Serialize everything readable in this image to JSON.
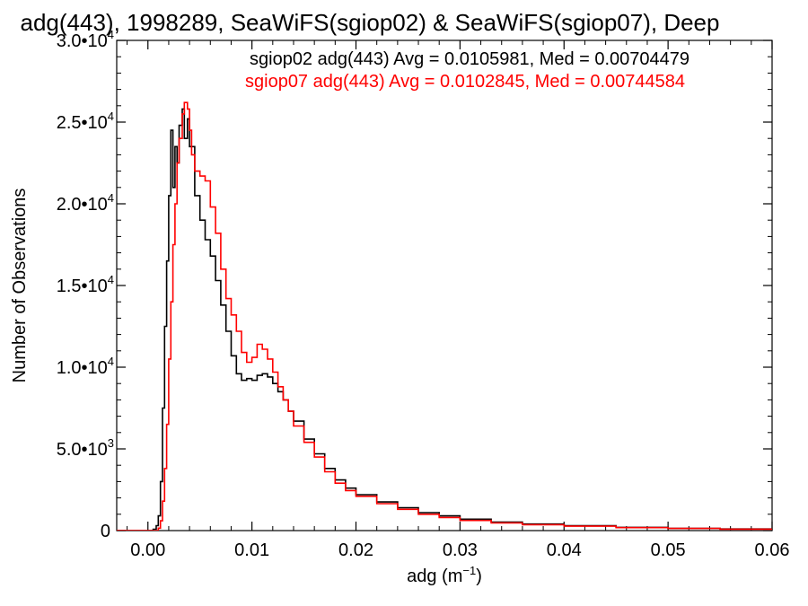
{
  "chart_data": {
    "type": "line",
    "title": "adg(443), 1998289, SeaWiFS(sgiop02) & SeaWiFS(sgiop07), Deep",
    "xlabel": "adg (m",
    "xlabel_sup": "−1",
    "xlabel_close": ")",
    "ylabel": "Number of Observations",
    "xlim": [
      -0.003,
      0.06
    ],
    "ylim": [
      0,
      30000
    ],
    "x_ticks": [
      {
        "value": 0.0,
        "label": "0.00"
      },
      {
        "value": 0.01,
        "label": "0.01"
      },
      {
        "value": 0.02,
        "label": "0.02"
      },
      {
        "value": 0.03,
        "label": "0.03"
      },
      {
        "value": 0.04,
        "label": "0.04"
      },
      {
        "value": 0.05,
        "label": "0.05"
      },
      {
        "value": 0.06,
        "label": "0.06"
      }
    ],
    "y_ticks": [
      {
        "value": 0,
        "mant": "0",
        "exp": ""
      },
      {
        "value": 5000,
        "mant": "5.0•10",
        "exp": "3"
      },
      {
        "value": 10000,
        "mant": "1.0•10",
        "exp": "4"
      },
      {
        "value": 15000,
        "mant": "1.5•10",
        "exp": "4"
      },
      {
        "value": 20000,
        "mant": "2.0•10",
        "exp": "4"
      },
      {
        "value": 25000,
        "mant": "2.5•10",
        "exp": "4"
      },
      {
        "value": 30000,
        "mant": "3.0•10",
        "exp": "4"
      }
    ],
    "grid": false,
    "legend_position": "top-right",
    "series": [
      {
        "name": "sgiop02 adg(443) Avg = 0.0105981, Med = 0.00704479",
        "color": "#000000",
        "points": [
          [
            -0.003,
            0
          ],
          [
            0.0,
            0
          ],
          [
            0.0005,
            80
          ],
          [
            0.0008,
            300
          ],
          [
            0.001,
            900
          ],
          [
            0.0012,
            3000
          ],
          [
            0.0014,
            7500
          ],
          [
            0.0016,
            12500
          ],
          [
            0.0018,
            16500
          ],
          [
            0.002,
            20500
          ],
          [
            0.0022,
            24500
          ],
          [
            0.0024,
            21000
          ],
          [
            0.0026,
            23500
          ],
          [
            0.0028,
            22500
          ],
          [
            0.003,
            24800
          ],
          [
            0.0033,
            25800
          ],
          [
            0.0035,
            24000
          ],
          [
            0.0038,
            25200
          ],
          [
            0.004,
            23500
          ],
          [
            0.0045,
            20500
          ],
          [
            0.005,
            19000
          ],
          [
            0.0055,
            17800
          ],
          [
            0.006,
            16800
          ],
          [
            0.0065,
            15300
          ],
          [
            0.007,
            13800
          ],
          [
            0.0075,
            12200
          ],
          [
            0.008,
            10700
          ],
          [
            0.0085,
            9600
          ],
          [
            0.009,
            9200
          ],
          [
            0.0095,
            9300
          ],
          [
            0.01,
            9200
          ],
          [
            0.0105,
            9500
          ],
          [
            0.011,
            9600
          ],
          [
            0.0115,
            9400
          ],
          [
            0.012,
            9000
          ],
          [
            0.0125,
            8500
          ],
          [
            0.013,
            8000
          ],
          [
            0.0135,
            7300
          ],
          [
            0.014,
            6700
          ],
          [
            0.015,
            5600
          ],
          [
            0.016,
            4700
          ],
          [
            0.017,
            3800
          ],
          [
            0.018,
            3100
          ],
          [
            0.019,
            2600
          ],
          [
            0.02,
            2200
          ],
          [
            0.022,
            1750
          ],
          [
            0.024,
            1400
          ],
          [
            0.026,
            1100
          ],
          [
            0.028,
            900
          ],
          [
            0.03,
            700
          ],
          [
            0.033,
            520
          ],
          [
            0.036,
            400
          ],
          [
            0.04,
            300
          ],
          [
            0.045,
            200
          ],
          [
            0.05,
            140
          ],
          [
            0.055,
            100
          ],
          [
            0.06,
            60
          ]
        ]
      },
      {
        "name": "sgiop07 adg(443) Avg = 0.0102845, Med = 0.00744584",
        "color": "#ff0000",
        "points": [
          [
            -0.003,
            0
          ],
          [
            0.0008,
            0
          ],
          [
            0.001,
            150
          ],
          [
            0.0012,
            600
          ],
          [
            0.0014,
            1800
          ],
          [
            0.0016,
            3800
          ],
          [
            0.0018,
            6500
          ],
          [
            0.002,
            10500
          ],
          [
            0.0022,
            14000
          ],
          [
            0.0024,
            17500
          ],
          [
            0.0026,
            20000
          ],
          [
            0.0028,
            22500
          ],
          [
            0.003,
            24000
          ],
          [
            0.0033,
            25500
          ],
          [
            0.0035,
            26200
          ],
          [
            0.0038,
            25800
          ],
          [
            0.004,
            24500
          ],
          [
            0.0042,
            23000
          ],
          [
            0.0045,
            22000
          ],
          [
            0.005,
            21700
          ],
          [
            0.0055,
            21400
          ],
          [
            0.006,
            19800
          ],
          [
            0.0065,
            18200
          ],
          [
            0.007,
            16000
          ],
          [
            0.0075,
            14200
          ],
          [
            0.008,
            13200
          ],
          [
            0.0085,
            12200
          ],
          [
            0.009,
            10900
          ],
          [
            0.0095,
            10300
          ],
          [
            0.01,
            10600
          ],
          [
            0.0105,
            11400
          ],
          [
            0.011,
            11100
          ],
          [
            0.0115,
            10500
          ],
          [
            0.012,
            9700
          ],
          [
            0.0125,
            8800
          ],
          [
            0.013,
            8000
          ],
          [
            0.0135,
            7300
          ],
          [
            0.014,
            6400
          ],
          [
            0.015,
            5400
          ],
          [
            0.016,
            4500
          ],
          [
            0.017,
            3600
          ],
          [
            0.018,
            2900
          ],
          [
            0.019,
            2450
          ],
          [
            0.02,
            2100
          ],
          [
            0.022,
            1650
          ],
          [
            0.024,
            1300
          ],
          [
            0.026,
            1000
          ],
          [
            0.028,
            800
          ],
          [
            0.03,
            620
          ],
          [
            0.033,
            470
          ],
          [
            0.036,
            360
          ],
          [
            0.04,
            270
          ],
          [
            0.045,
            180
          ],
          [
            0.05,
            130
          ],
          [
            0.055,
            90
          ],
          [
            0.06,
            55
          ]
        ]
      }
    ]
  }
}
